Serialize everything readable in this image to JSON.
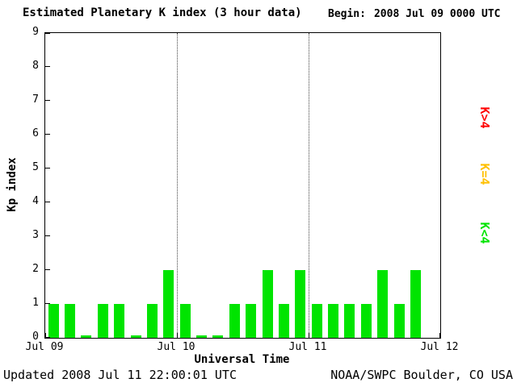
{
  "header": {
    "title": "Estimated Planetary K index (3 hour data)",
    "begin_label": "Begin:",
    "begin_value": "2008 Jul 09 0000 UTC"
  },
  "footer": {
    "updated": "Updated 2008 Jul 11 22:00:01 UTC",
    "credit": "NOAA/SWPC Boulder, CO USA"
  },
  "chart_data": {
    "type": "bar",
    "title": "Estimated Planetary K index (3 hour data)",
    "begin": "2008 Jul 09 0000 UTC",
    "xlabel": "Universal Time",
    "ylabel": "Kp index",
    "ylim": [
      0,
      9
    ],
    "y_ticks": [
      0,
      1,
      2,
      3,
      4,
      5,
      6,
      7,
      8,
      9
    ],
    "x_ticks": [
      "Jul 09",
      "Jul 10",
      "Jul 11",
      "Jul 12"
    ],
    "bar_interval_hours": 3,
    "values": [
      1,
      1,
      0,
      1,
      1,
      0,
      1,
      2,
      1,
      0,
      0,
      1,
      1,
      2,
      1,
      2,
      1,
      1,
      1,
      1,
      2,
      1,
      2,
      null
    ],
    "bar_color": "#00e400",
    "grid": "dotted-vertical-at-day-boundaries",
    "legend_position": "right-rotated",
    "legend": [
      {
        "label": "K>4",
        "color": "#ff0000"
      },
      {
        "label": "K=4",
        "color": "#ffc000"
      },
      {
        "label": "K<4",
        "color": "#00e400"
      }
    ]
  }
}
